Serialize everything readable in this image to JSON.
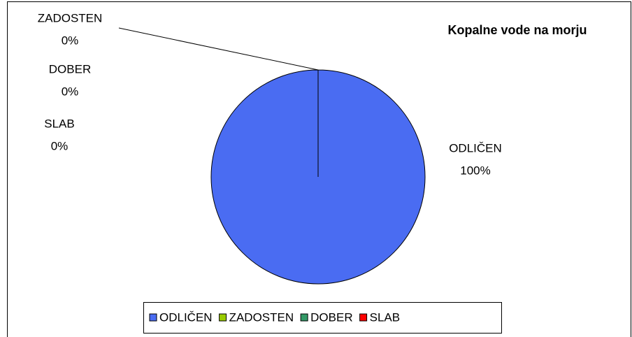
{
  "chart_data": {
    "type": "pie",
    "title": "Kopalne vode na morju",
    "categories": [
      "ODLIČEN",
      "ZADOSTEN",
      "DOBER",
      "SLAB"
    ],
    "values": [
      100,
      0,
      0,
      0
    ],
    "value_labels": [
      "100%",
      "0%",
      "0%",
      "0%"
    ],
    "colors": [
      "#4a6cf2",
      "#99cc00",
      "#339966",
      "#ff0000"
    ],
    "legend": "bottom"
  }
}
